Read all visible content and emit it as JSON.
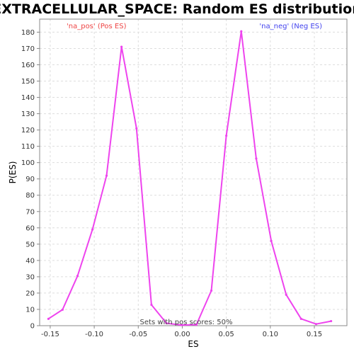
{
  "chart_data": {
    "type": "line",
    "title": "EXTRACELLULAR_SPACE: Random ES distribution",
    "xlabel": "ES",
    "ylabel": "P(ES)",
    "xlim": [
      -0.162,
      0.187
    ],
    "ylim": [
      0,
      188
    ],
    "x_ticks": [
      -0.15,
      -0.1,
      -0.05,
      0.0,
      0.05,
      0.1,
      0.15
    ],
    "x_tick_labels": [
      "-0.15",
      "-0.10",
      "-0.05",
      "0.00",
      "0.05",
      "0.10",
      "0.15"
    ],
    "y_ticks": [
      0,
      10,
      20,
      30,
      40,
      50,
      60,
      70,
      80,
      90,
      100,
      110,
      120,
      130,
      140,
      150,
      160,
      170,
      180
    ],
    "y_tick_labels": [
      "0",
      "10",
      "20",
      "30",
      "40",
      "50",
      "60",
      "70",
      "80",
      "90",
      "100",
      "110",
      "120",
      "130",
      "140",
      "150",
      "160",
      "170",
      "180"
    ],
    "grid": true,
    "series": [
      {
        "name": "",
        "color": "#ee44ee",
        "points": [
          [
            -0.152,
            4.2
          ],
          [
            -0.136,
            9.8
          ],
          [
            -0.119,
            30.5
          ],
          [
            -0.102,
            59.0
          ],
          [
            -0.086,
            92.0
          ],
          [
            -0.069,
            171.0
          ],
          [
            -0.052,
            121.0
          ],
          [
            -0.035,
            12.8
          ],
          [
            -0.018,
            1.5
          ],
          [
            -0.001,
            0.4
          ],
          [
            0.016,
            0.6
          ],
          [
            0.033,
            21.5
          ],
          [
            0.05,
            116.5
          ],
          [
            0.067,
            180.5
          ],
          [
            0.084,
            102.5
          ],
          [
            0.101,
            52.0
          ],
          [
            0.118,
            19.0
          ],
          [
            0.135,
            4.2
          ],
          [
            0.152,
            1.0
          ],
          [
            0.169,
            2.8
          ]
        ]
      }
    ],
    "annotations": [
      {
        "text": "'na_pos' (Pos ES)",
        "color": "#ee4444",
        "position": "top-left"
      },
      {
        "text": "'na_neg' (Neg ES)",
        "color": "#4444ee",
        "position": "top-right"
      },
      {
        "text": "Sets with pos scores: 50%",
        "color": "#444444",
        "position": "bottom-center"
      }
    ]
  }
}
